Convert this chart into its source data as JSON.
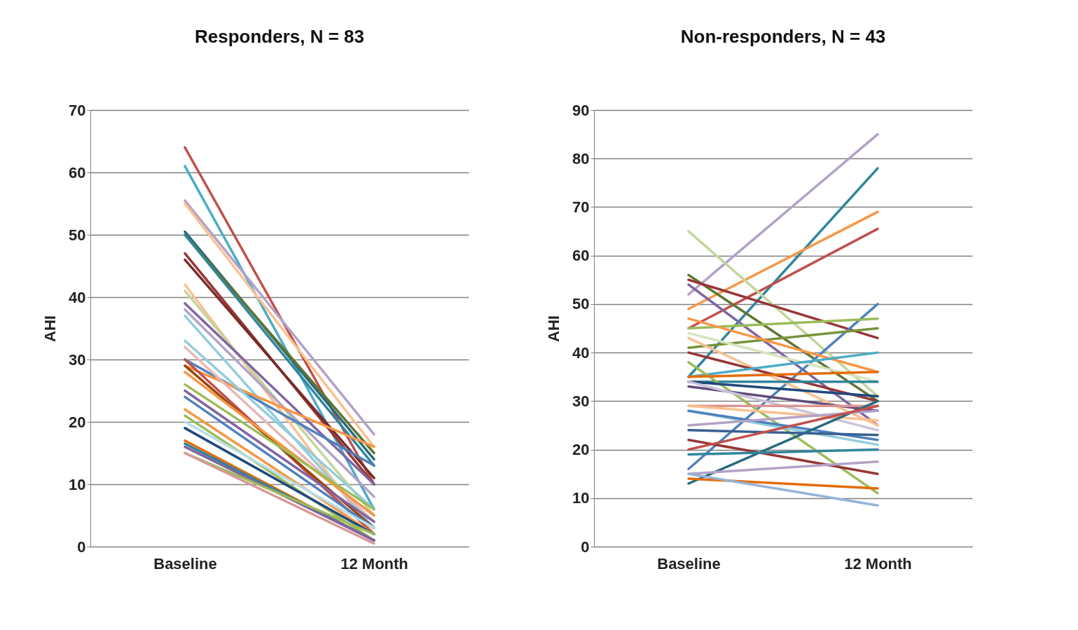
{
  "chart_data": [
    {
      "type": "line",
      "title": "Responders, N = 83",
      "categories": [
        "Baseline",
        "12 Month"
      ],
      "ylabel": "AHI",
      "ylim": [
        0,
        70
      ],
      "yticks": [
        0,
        10,
        20,
        30,
        40,
        50,
        60,
        70
      ],
      "grid": "y",
      "series": [
        {
          "color": "#c0504d",
          "values": [
            64,
            10
          ]
        },
        {
          "color": "#4bacc6",
          "values": [
            61,
            6
          ]
        },
        {
          "color": "#b3a2c7",
          "values": [
            55.5,
            18
          ]
        },
        {
          "color": "#fac090",
          "values": [
            55,
            16
          ]
        },
        {
          "color": "#276a7c",
          "values": [
            50.5,
            14
          ]
        },
        {
          "color": "#5f7530",
          "values": [
            50,
            15
          ]
        },
        {
          "color": "#31859c",
          "values": [
            50,
            13
          ]
        },
        {
          "color": "#953735",
          "values": [
            47,
            10
          ]
        },
        {
          "color": "#772c2a",
          "values": [
            46,
            11
          ]
        },
        {
          "color": "#fac090",
          "values": [
            42,
            2
          ]
        },
        {
          "color": "#c3d69b",
          "values": [
            41,
            5
          ]
        },
        {
          "color": "#8064a2",
          "values": [
            39,
            10
          ]
        },
        {
          "color": "#b3a2c7",
          "values": [
            38,
            8
          ]
        },
        {
          "color": "#93cddd",
          "values": [
            37,
            3
          ]
        },
        {
          "color": "#4f81bd",
          "values": [
            30,
            13
          ]
        },
        {
          "color": "#f79646",
          "values": [
            29,
            16
          ]
        },
        {
          "color": "#93cddd",
          "values": [
            33,
            6
          ]
        },
        {
          "color": "#e6b9b8",
          "values": [
            32,
            4
          ]
        },
        {
          "color": "#c0504d",
          "values": [
            30,
            2
          ]
        },
        {
          "color": "#984807",
          "values": [
            29,
            3
          ]
        },
        {
          "color": "#f79646",
          "values": [
            28,
            5
          ]
        },
        {
          "color": "#9bbb59",
          "values": [
            26,
            6
          ]
        },
        {
          "color": "#8064a2",
          "values": [
            25,
            4
          ]
        },
        {
          "color": "#4f81bd",
          "values": [
            24,
            3
          ]
        },
        {
          "color": "#f79646",
          "values": [
            22,
            2
          ]
        },
        {
          "color": "#9bbb59",
          "values": [
            21,
            1
          ]
        },
        {
          "color": "#b7dee8",
          "values": [
            20,
            3
          ]
        },
        {
          "color": "#1f497d",
          "values": [
            19,
            2
          ]
        },
        {
          "color": "#e46c0a",
          "values": [
            17,
            1
          ]
        },
        {
          "color": "#31859c",
          "values": [
            16.5,
            1
          ]
        },
        {
          "color": "#8064a2",
          "values": [
            16,
            1
          ]
        },
        {
          "color": "#9bbb59",
          "values": [
            15,
            2
          ]
        },
        {
          "color": "#d99694",
          "values": [
            15,
            0.5
          ]
        }
      ]
    },
    {
      "type": "line",
      "title": "Non-responders,  N = 43",
      "categories": [
        "Baseline",
        "12 Month"
      ],
      "ylabel": "AHI",
      "ylim": [
        0,
        90
      ],
      "yticks": [
        0,
        10,
        20,
        30,
        40,
        50,
        60,
        70,
        80,
        90
      ],
      "grid": "y",
      "series": [
        {
          "color": "#b3a2c7",
          "values": [
            52,
            85
          ]
        },
        {
          "color": "#31859c",
          "values": [
            35,
            78
          ]
        },
        {
          "color": "#f79646",
          "values": [
            49,
            69
          ]
        },
        {
          "color": "#c0504d",
          "values": [
            45,
            65.5
          ]
        },
        {
          "color": "#c3d69b",
          "values": [
            65,
            31
          ]
        },
        {
          "color": "#5f7530",
          "values": [
            56,
            30
          ]
        },
        {
          "color": "#953735",
          "values": [
            55,
            43
          ]
        },
        {
          "color": "#8064a2",
          "values": [
            54,
            25
          ]
        },
        {
          "color": "#4f81bd",
          "values": [
            16,
            50
          ]
        },
        {
          "color": "#9bbb59",
          "values": [
            45,
            47
          ]
        },
        {
          "color": "#77933c",
          "values": [
            41,
            45
          ]
        },
        {
          "color": "#d7e4bd",
          "values": [
            44,
            34
          ]
        },
        {
          "color": "#f79646",
          "values": [
            47,
            36
          ]
        },
        {
          "color": "#fac090",
          "values": [
            43,
            25
          ]
        },
        {
          "color": "#953735",
          "values": [
            40,
            30
          ]
        },
        {
          "color": "#4bacc6",
          "values": [
            35,
            40
          ]
        },
        {
          "color": "#31859c",
          "values": [
            34,
            34
          ]
        },
        {
          "color": "#9bbb59",
          "values": [
            38,
            11
          ]
        },
        {
          "color": "#e46c0a",
          "values": [
            35,
            36
          ]
        },
        {
          "color": "#1f497d",
          "values": [
            34,
            31
          ]
        },
        {
          "color": "#604a7b",
          "values": [
            33,
            28
          ]
        },
        {
          "color": "#ccc1da",
          "values": [
            34,
            24
          ]
        },
        {
          "color": "#d99694",
          "values": [
            29,
            29
          ]
        },
        {
          "color": "#fac090",
          "values": [
            29,
            26
          ]
        },
        {
          "color": "#93cddd",
          "values": [
            28,
            21
          ]
        },
        {
          "color": "#4f81bd",
          "values": [
            28,
            22
          ]
        },
        {
          "color": "#276a7c",
          "values": [
            13,
            30
          ]
        },
        {
          "color": "#b3a2c7",
          "values": [
            25,
            28
          ]
        },
        {
          "color": "#376092",
          "values": [
            24,
            23
          ]
        },
        {
          "color": "#953735",
          "values": [
            22,
            15
          ]
        },
        {
          "color": "#31859c",
          "values": [
            19,
            20
          ]
        },
        {
          "color": "#c0504d",
          "values": [
            20,
            29
          ]
        },
        {
          "color": "#b3a2c7",
          "values": [
            15,
            17.5
          ]
        },
        {
          "color": "#e46c0a",
          "values": [
            14,
            12
          ]
        },
        {
          "color": "#95b3d7",
          "values": [
            15,
            8.5
          ]
        }
      ]
    }
  ]
}
